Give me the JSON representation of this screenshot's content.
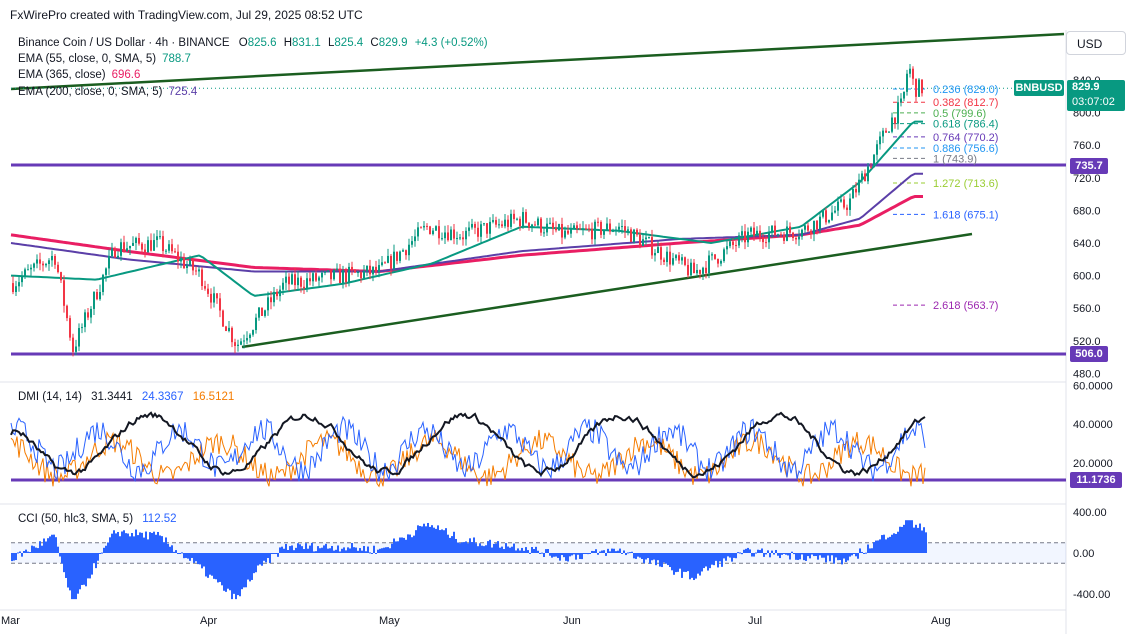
{
  "header": {
    "title": "FxWirePro created with TradingView.com, Jul 29, 2025 08:52 UTC"
  },
  "symbol": {
    "name": "Binance Coin / US Dollar · 4h · BINANCE",
    "o_label": "O",
    "o": "825.6",
    "h_label": "H",
    "h": "831.1",
    "l_label": "L",
    "l": "825.4",
    "c_label": "C",
    "c": "829.9",
    "change": "+4.3 (+0.52%)",
    "ticker": "BNBUSD",
    "last_price": "829.9",
    "countdown": "03:07:02",
    "currency": "USD"
  },
  "indicators": {
    "ema1": {
      "label": "EMA (55, close, 0, SMA, 5)",
      "value": "788.7",
      "color": "#089981"
    },
    "ema2": {
      "label": "EMA (365, close)",
      "value": "696.6",
      "color": "#e91e63"
    },
    "ema3": {
      "label": "EMA (200, close, 0, SMA, 5)",
      "value": "725.4",
      "color": "#5b3fa8"
    },
    "dmi": {
      "label": "DMI (14, 14)",
      "v1": "31.3441",
      "v2": "24.3367",
      "v3": "16.5121"
    },
    "cci": {
      "label": "CCI (50, hlc3, SMA, 5)",
      "value": "112.52"
    }
  },
  "colors": {
    "up": "#089981",
    "down": "#f23645",
    "trend": "#1b5e20",
    "level": "#673ab7",
    "dmi_plus": "#2962ff",
    "dmi_minus": "#f57c00",
    "adx": "#131722",
    "cci": "#2962ff"
  },
  "levels": {
    "resistance": "735.7",
    "support": "506.0",
    "dmi_level": "11.1736"
  },
  "fib_levels": [
    {
      "label": "0.236 (829.0)",
      "price": 829.0,
      "color": "#2196f3"
    },
    {
      "label": "0.382 (812.7)",
      "price": 812.7,
      "color": "#f23645"
    },
    {
      "label": "0.5 (799.6)",
      "price": 799.6,
      "color": "#4caf50"
    },
    {
      "label": "0.618 (786.4)",
      "price": 786.4,
      "color": "#089981"
    },
    {
      "label": "0.764 (770.2)",
      "price": 770.2,
      "color": "#673ab7"
    },
    {
      "label": "0.886 (756.6)",
      "price": 756.6,
      "color": "#2196f3"
    },
    {
      "label": "1 (743.9)",
      "price": 743.9,
      "color": "#787b86"
    },
    {
      "label": "1.272 (713.6)",
      "price": 713.6,
      "color": "#9acd32"
    },
    {
      "label": "1.618 (675.1)",
      "price": 675.1,
      "color": "#2962ff"
    },
    {
      "label": "2.618 (563.7)",
      "price": 563.7,
      "color": "#9c27b0"
    }
  ],
  "chart_data": {
    "type": "line",
    "title": "Binance Coin / US Dollar · 4h · BINANCE",
    "x_labels": [
      "Mar",
      "Apr",
      "May",
      "Jun",
      "Jul",
      "Aug"
    ],
    "price_ticks": [
      "840.0",
      "800.0",
      "760.0",
      "720.0",
      "680.0",
      "640.0",
      "600.0",
      "560.0",
      "520.0",
      "480.0"
    ],
    "dmi_ticks": [
      "60.0000",
      "40.0000",
      "20.0000"
    ],
    "cci_ticks": [
      "400.00",
      "0.00",
      "-400.00"
    ],
    "ylim_price": [
      468,
      880
    ],
    "ylim_dmi": [
      0,
      62
    ],
    "ylim_cci": [
      -520,
      470
    ],
    "series": [
      {
        "name": "BNBUSD",
        "x": [
          "Mar 01",
          "Mar 08",
          "Mar 11",
          "Mar 18",
          "Mar 25",
          "Apr 01",
          "Apr 07",
          "Apr 15",
          "Apr 25",
          "May 01",
          "May 09",
          "May 15",
          "May 25",
          "Jun 01",
          "Jun 10",
          "Jun 22",
          "Jul 01",
          "Jul 10",
          "Jul 18",
          "Jul 22",
          "Jul 25",
          "Jul 27",
          "Jul 28",
          "Jul 29"
        ],
        "values": [
          590,
          625,
          510,
          635,
          640,
          600,
          515,
          590,
          600,
          605,
          660,
          650,
          670,
          650,
          660,
          603,
          650,
          655,
          690,
          745,
          790,
          810,
          860,
          830
        ]
      },
      {
        "name": "EMA (55, close, 0, SMA, 5)",
        "x": [
          "Mar 01",
          "Mar 15",
          "Apr 01",
          "Apr 10",
          "Apr 25",
          "May 10",
          "May 25",
          "Jun 10",
          "Jun 25",
          "Jul 10",
          "Jul 20",
          "Jul 29"
        ],
        "values": [
          600,
          595,
          625,
          575,
          590,
          615,
          660,
          655,
          640,
          660,
          715,
          789
        ]
      },
      {
        "name": "EMA (365, close)",
        "x": [
          "Mar 01",
          "Mar 20",
          "Apr 10",
          "May 01",
          "May 25",
          "Jun 20",
          "Jul 10",
          "Jul 20",
          "Jul 29"
        ],
        "values": [
          650,
          630,
          610,
          605,
          625,
          640,
          650,
          662,
          697
        ]
      },
      {
        "name": "EMA (200, close, 0, SMA, 5)",
        "x": [
          "Mar 01",
          "Mar 20",
          "Apr 10",
          "May 01",
          "May 25",
          "Jun 20",
          "Jul 10",
          "Jul 20",
          "Jul 29"
        ],
        "values": [
          640,
          620,
          605,
          605,
          630,
          645,
          650,
          670,
          725
        ]
      }
    ],
    "dmi": {
      "adx": 31.3441,
      "di_plus": 24.3367,
      "di_minus": 16.5121
    },
    "cci_value": 112.52
  }
}
